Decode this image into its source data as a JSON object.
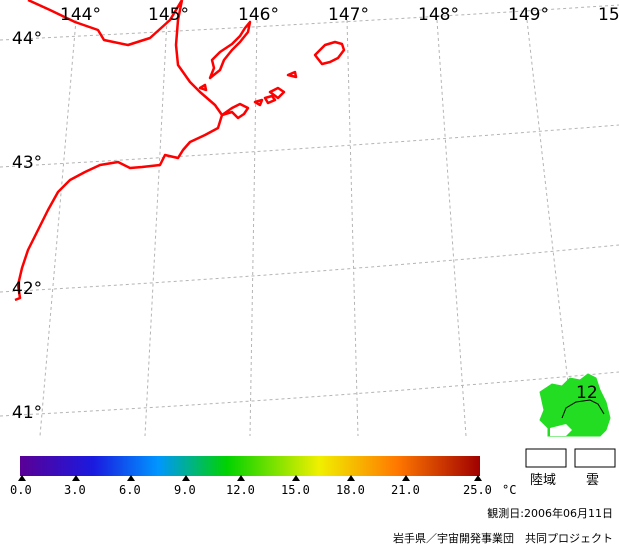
{
  "longitude_labels": [
    "144°",
    "145°",
    "146°",
    "147°",
    "148°",
    "149°",
    "15"
  ],
  "latitude_labels": [
    "44°",
    "43°",
    "42°",
    "41°"
  ],
  "region_label": "12",
  "colorbar": {
    "ticks": [
      "0.0",
      "3.0",
      "6.0",
      "9.0",
      "12.0",
      "15.0",
      "18.0",
      "21.0",
      "25.0"
    ],
    "unit": "°C",
    "colors": [
      "#5a0096",
      "#1a1ae0",
      "#0096ff",
      "#00d200",
      "#f0f000",
      "#ff7800",
      "#a00000"
    ]
  },
  "legend": {
    "land_label": "陸域",
    "cloud_label": "雲"
  },
  "footer": {
    "observation_date": "観測日:2006年06月11日",
    "credit": "岩手県／宇宙開発事業団　共同プロジェクト"
  },
  "colors": {
    "coastline": "#ff0000",
    "grid": "#b4b4b4",
    "sst_region": "#22dd22"
  }
}
